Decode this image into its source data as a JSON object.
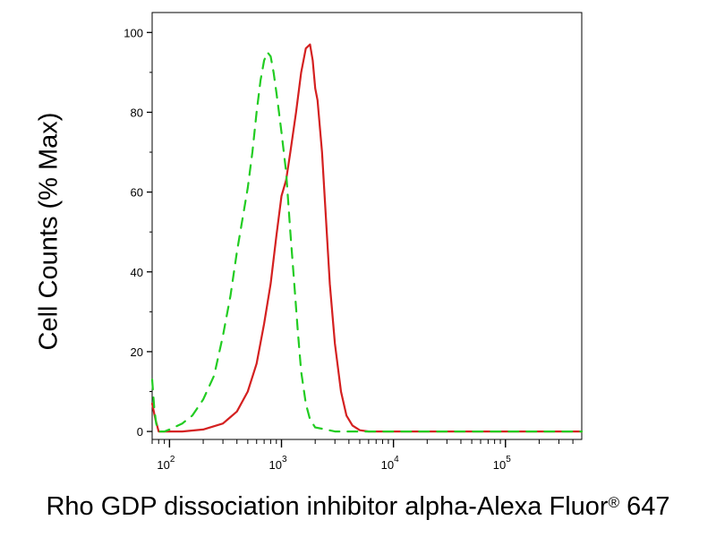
{
  "chart_data": {
    "type": "line",
    "title": "",
    "xlabel": "Rho GDP dissociation inhibitor alpha-Alexa Fluor",
    "xlabel_mark": "®",
    "xlabel_suffix": "647",
    "ylabel": "Cell Counts (% Max)",
    "x_scale": "log",
    "xlim": [
      70,
      480000
    ],
    "ylim": [
      -2,
      105
    ],
    "x_ticks": [
      {
        "base": "10",
        "exp": "2",
        "value": 100
      },
      {
        "base": "10",
        "exp": "3",
        "value": 1000
      },
      {
        "base": "10",
        "exp": "4",
        "value": 10000
      },
      {
        "base": "10",
        "exp": "5",
        "value": 100000
      }
    ],
    "y_ticks": [
      "0",
      "20",
      "40",
      "60",
      "80",
      "100"
    ],
    "grid": false,
    "legend": "none",
    "series": [
      {
        "color": "#d42020",
        "style": "solid",
        "x": [
          70,
          75,
          80,
          90,
          100,
          130,
          200,
          300,
          400,
          500,
          600,
          700,
          800,
          900,
          1000,
          1100,
          1200,
          1350,
          1500,
          1650,
          1800,
          1900,
          2000,
          2100,
          2300,
          2500,
          2700,
          3000,
          3400,
          3800,
          4300,
          5000,
          6000,
          10000,
          50000,
          100000,
          480000
        ],
        "y": [
          7,
          3,
          0,
          0,
          0,
          0,
          0.5,
          2,
          5,
          10,
          17,
          27,
          37,
          49,
          59,
          63,
          70,
          80,
          90,
          96,
          97,
          93,
          86,
          83,
          70,
          53,
          37,
          22,
          10,
          4,
          1.5,
          0.3,
          0,
          0,
          0,
          0,
          0
        ]
      },
      {
        "color": "#22cc22",
        "style": "dashed",
        "x": [
          70,
          73,
          76,
          80,
          90,
          100,
          130,
          160,
          200,
          250,
          300,
          350,
          400,
          500,
          550,
          600,
          650,
          700,
          750,
          800,
          850,
          900,
          950,
          1000,
          1100,
          1200,
          1300,
          1400,
          1500,
          1650,
          1800,
          2000,
          2500,
          3000,
          5000,
          10000,
          480000
        ],
        "y": [
          13,
          6,
          2,
          0,
          0,
          0.5,
          2,
          4,
          8,
          14,
          24,
          34,
          45,
          61,
          70,
          80,
          88,
          93,
          95,
          94,
          90,
          85,
          80,
          75,
          65,
          50,
          37,
          25,
          15,
          7,
          3,
          1,
          0.5,
          0,
          0,
          0,
          0
        ]
      }
    ]
  }
}
